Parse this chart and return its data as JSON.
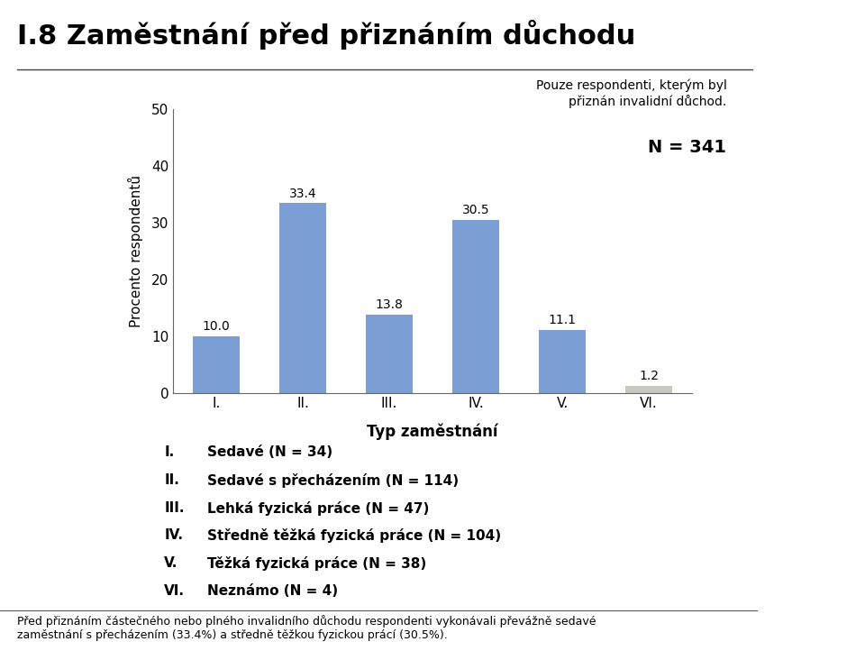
{
  "title": "I.8 Zaměstnání před přiznáním důchodu",
  "categories": [
    "I.",
    "II.",
    "III.",
    "IV.",
    "V.",
    "VI."
  ],
  "values": [
    10.0,
    33.4,
    13.8,
    30.5,
    11.1,
    1.2
  ],
  "bar_colors": [
    "#7B9FD4",
    "#7B9FD4",
    "#7B9FD4",
    "#7B9FD4",
    "#7B9FD4",
    "#C8C8C0"
  ],
  "ylabel": "Procento respondentů",
  "xlabel": "Typ zaměstnání",
  "ylim": [
    0,
    50
  ],
  "yticks": [
    0,
    10,
    20,
    30,
    40,
    50
  ],
  "subtitle": "Pouze respondenti, kterým byl\npřiznán invalidní důchod.",
  "n_label": "N = 341",
  "legend_lines": [
    [
      "I.",
      "Sedavé (N = 34)"
    ],
    [
      "II.",
      "Sedavé s přecházením (N = 114)"
    ],
    [
      "III.",
      "Lehká fyzická práce (N = 47)"
    ],
    [
      "IV.",
      "Středně těžká fyzická práce (N = 104)"
    ],
    [
      "V.",
      "Těžká fyzická práce (N = 38)"
    ],
    [
      "VI.",
      "Neznámo (N = 4)"
    ]
  ],
  "footer": "Před přiznáním částečného nebo plného invalidního důchodu respondenti vykonávali převážně sedavé\nzaměstnání s přecházením (33.4%) a středně těžkou fyzickou prácí (30.5%).",
  "sidebar_color": "#A0AED0",
  "background_color": "#FFFFFF",
  "title_fontsize": 22,
  "bar_label_fontsize": 10,
  "axis_label_fontsize": 11,
  "tick_fontsize": 11,
  "legend_fontsize": 11,
  "footer_fontsize": 9
}
